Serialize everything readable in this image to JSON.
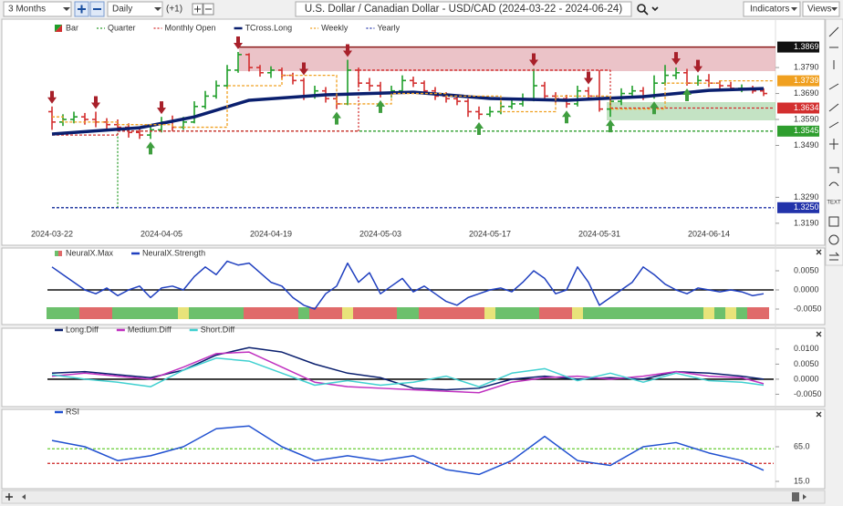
{
  "toolbar": {
    "range": "3 Months",
    "interval": "Daily",
    "offset": "(+1)",
    "title": "U.S. Dollar / Canadian Dollar - USD/CAD (2024-03-22 - 2024-06-24)",
    "indicators": "Indicators",
    "views": "Views",
    "text_tool": "TEXT"
  },
  "chart_data": [
    {
      "type": "ohlc",
      "categories": [
        "2024-03-22",
        null,
        null,
        null,
        null,
        null,
        null,
        null,
        null,
        null,
        "2024-04-05",
        null,
        null,
        null,
        null,
        null,
        null,
        null,
        null,
        null,
        "2024-04-19",
        null,
        null,
        null,
        null,
        null,
        null,
        null,
        null,
        null,
        "2024-05-03",
        null,
        null,
        null,
        null,
        null,
        null,
        null,
        null,
        null,
        "2024-05-17",
        null,
        null,
        null,
        null,
        null,
        null,
        null,
        null,
        null,
        "2024-05-31",
        null,
        null,
        null,
        null,
        null,
        null,
        null,
        null,
        null,
        "2024-06-14",
        null,
        null,
        null,
        null,
        null
      ],
      "ylim": [
        1.3172,
        1.3973
      ],
      "yticks": [
        {
          "value": 1.379,
          "label": "1.3790"
        },
        {
          "value": 1.369,
          "label": "1.3690"
        },
        {
          "value": 1.359,
          "label": "1.3590"
        },
        {
          "value": 1.349,
          "label": "1.3490"
        },
        {
          "value": 1.329,
          "label": "1.3290"
        },
        {
          "value": 1.319,
          "label": "1.3190"
        }
      ],
      "series": [
        {
          "name": "Bar",
          "type": "ohlc",
          "up_color": "#1f9e2a",
          "down_color": "#d32f2f",
          "open": [
            1.362,
            1.358,
            1.359,
            1.36,
            1.359,
            1.358,
            1.357,
            1.356,
            1.354,
            1.353,
            1.355,
            1.358,
            1.356,
            1.358,
            1.364,
            1.368,
            1.372,
            1.378,
            1.384,
            1.379,
            1.377,
            1.378,
            1.376,
            1.374,
            1.368,
            1.37,
            1.367,
            1.365,
            1.378,
            1.373,
            1.372,
            1.369,
            1.37,
            1.374,
            1.373,
            1.37,
            1.368,
            1.367,
            1.366,
            1.362,
            1.361,
            1.362,
            1.364,
            1.365,
            1.367,
            1.372,
            1.368,
            1.367,
            1.365,
            1.37,
            1.368,
            1.363,
            1.366,
            1.369,
            1.37,
            1.368,
            1.373,
            1.376,
            1.377,
            1.373,
            1.374,
            1.373,
            1.372,
            1.371,
            1.371,
            1.37
          ],
          "high": [
            1.364,
            1.361,
            1.362,
            1.3615,
            1.362,
            1.3595,
            1.359,
            1.3575,
            1.356,
            1.357,
            1.36,
            1.3605,
            1.36,
            1.366,
            1.37,
            1.374,
            1.38,
            1.385,
            1.3845,
            1.38,
            1.3795,
            1.379,
            1.377,
            1.375,
            1.372,
            1.3715,
            1.3685,
            1.382,
            1.379,
            1.375,
            1.3735,
            1.372,
            1.376,
            1.3755,
            1.374,
            1.3715,
            1.3695,
            1.3685,
            1.367,
            1.364,
            1.364,
            1.366,
            1.367,
            1.369,
            1.3785,
            1.3735,
            1.3695,
            1.3685,
            1.372,
            1.3715,
            1.378,
            1.3675,
            1.371,
            1.372,
            1.3715,
            1.376,
            1.38,
            1.379,
            1.3785,
            1.376,
            1.3765,
            1.374,
            1.3735,
            1.3725,
            1.372,
            1.371
          ],
          "low": [
            1.355,
            1.3565,
            1.3575,
            1.357,
            1.356,
            1.3555,
            1.3545,
            1.352,
            1.3515,
            1.3515,
            1.354,
            1.3545,
            1.355,
            1.3575,
            1.363,
            1.367,
            1.371,
            1.377,
            1.3775,
            1.3755,
            1.375,
            1.3745,
            1.3725,
            1.3665,
            1.367,
            1.3655,
            1.363,
            1.3645,
            1.3715,
            1.37,
            1.3675,
            1.3675,
            1.369,
            1.3715,
            1.369,
            1.3665,
            1.3655,
            1.3645,
            1.36,
            1.359,
            1.36,
            1.361,
            1.363,
            1.364,
            1.366,
            1.3665,
            1.3655,
            1.3635,
            1.364,
            1.3665,
            1.362,
            1.36,
            1.3645,
            1.3675,
            1.3665,
            1.367,
            1.372,
            1.3745,
            1.372,
            1.372,
            1.3715,
            1.3705,
            1.37,
            1.3695,
            1.369,
            1.368
          ],
          "close": [
            1.358,
            1.359,
            1.36,
            1.359,
            1.358,
            1.357,
            1.356,
            1.354,
            1.353,
            1.355,
            1.358,
            1.356,
            1.358,
            1.364,
            1.368,
            1.372,
            1.378,
            1.384,
            1.379,
            1.377,
            1.378,
            1.376,
            1.374,
            1.368,
            1.37,
            1.367,
            1.365,
            1.378,
            1.373,
            1.372,
            1.369,
            1.37,
            1.374,
            1.373,
            1.37,
            1.368,
            1.367,
            1.366,
            1.362,
            1.361,
            1.362,
            1.364,
            1.365,
            1.367,
            1.372,
            1.368,
            1.367,
            1.365,
            1.37,
            1.368,
            1.363,
            1.366,
            1.369,
            1.37,
            1.368,
            1.373,
            1.376,
            1.377,
            1.373,
            1.374,
            1.373,
            1.372,
            1.371,
            1.371,
            1.37,
            1.369
          ]
        },
        {
          "name": "Quarter",
          "type": "level",
          "color": "#2e9e2e",
          "x": [
            0,
            6
          ],
          "values": [
            1.325,
            1.3545
          ],
          "label": "1.3545"
        },
        {
          "name": "Monthly Open",
          "type": "level",
          "color": "#d32f2f",
          "x": [
            0,
            6,
            28,
            51
          ],
          "values": [
            1.353,
            1.3545,
            1.378,
            1.3634
          ],
          "label": "1.3634"
        },
        {
          "name": "TCross.Long",
          "type": "line",
          "color": "#0a1f6e",
          "x": [
            0,
            8,
            13,
            18,
            25,
            33,
            40,
            47,
            54,
            60,
            65
          ],
          "values": [
            1.3534,
            1.3558,
            1.36,
            1.3664,
            1.3685,
            1.3695,
            1.3671,
            1.3664,
            1.3678,
            1.3702,
            1.3709
          ]
        },
        {
          "name": "Weekly",
          "type": "step",
          "color": "#f0a020",
          "x": [
            0,
            1,
            6,
            11,
            16,
            21,
            26,
            31,
            36,
            41,
            46,
            51,
            56,
            61
          ],
          "values": [
            1.36,
            1.358,
            1.357,
            1.356,
            1.372,
            1.376,
            1.365,
            1.369,
            1.368,
            1.362,
            1.368,
            1.363,
            1.373,
            1.3739
          ],
          "label": "1.3739"
        },
        {
          "name": "Yearly",
          "type": "level",
          "color": "#2233aa",
          "x": [
            0
          ],
          "values": [
            1.325
          ],
          "label": "1.3250"
        }
      ],
      "levels": [
        {
          "value": 1.3869,
          "x": 17,
          "color": "#8b1a1a"
        }
      ],
      "down_arrows": [
        0,
        4,
        10,
        17,
        23,
        27,
        44,
        49,
        57,
        59
      ],
      "up_arrows": [
        9,
        26,
        30,
        39,
        47,
        51,
        55,
        58
      ]
    },
    {
      "type": "line",
      "ylim": [
        -0.0081,
        0.0081
      ],
      "yticks": [
        {
          "value": 0.005,
          "label": "0.0050"
        },
        {
          "value": 0,
          "label": "0.0000"
        },
        {
          "value": -0.005,
          "label": "-0.0050"
        }
      ],
      "hline": 0,
      "series": [
        {
          "name": "NeuralX.Max",
          "type": "strip",
          "palette": {
            "-1": "#e06a6a",
            "0": "#e8e37a",
            "1": "#6cc06c"
          },
          "values": [
            1,
            1,
            1,
            -1,
            -1,
            -1,
            1,
            1,
            1,
            1,
            1,
            1,
            0,
            1,
            1,
            1,
            1,
            1,
            -1,
            -1,
            -1,
            -1,
            -1,
            1,
            -1,
            -1,
            -1,
            0,
            -1,
            -1,
            -1,
            -1,
            1,
            1,
            -1,
            -1,
            -1,
            -1,
            -1,
            -1,
            0,
            1,
            1,
            1,
            1,
            -1,
            -1,
            -1,
            0,
            1,
            1,
            1,
            1,
            1,
            1,
            1,
            1,
            1,
            1,
            1,
            0,
            1,
            0,
            1,
            -1,
            -1
          ]
        },
        {
          "name": "NeuralX.Strength",
          "type": "line",
          "color": "#1f3fbf",
          "values": [
            0.006,
            0.004,
            0.002,
            0.0,
            -0.001,
            0.0005,
            -0.0015,
            0.0,
            0.001,
            -0.002,
            0.0005,
            0.001,
            0.0,
            0.0035,
            0.006,
            0.004,
            0.0075,
            0.0065,
            0.007,
            0.0045,
            0.002,
            0.001,
            -0.002,
            -0.004,
            -0.005,
            -0.001,
            0.001,
            0.007,
            0.002,
            0.0045,
            -0.001,
            0.001,
            0.003,
            -0.0005,
            0.001,
            -0.001,
            -0.003,
            -0.004,
            -0.002,
            -0.001,
            0.0,
            0.0005,
            -0.0005,
            0.002,
            0.005,
            0.003,
            -0.001,
            0.0,
            0.006,
            0.002,
            -0.004,
            -0.002,
            0.0,
            0.002,
            0.006,
            0.004,
            0.0015,
            0.0,
            -0.001,
            0.0005,
            0.0,
            -0.0005,
            0.0,
            -0.0005,
            -0.0015,
            -0.001
          ]
        }
      ]
    },
    {
      "type": "line",
      "ylim": [
        -0.0079,
        0.0145
      ],
      "yticks": [
        {
          "value": 0.01,
          "label": "0.0100"
        },
        {
          "value": 0.005,
          "label": "0.0050"
        },
        {
          "value": 0,
          "label": "0.0000"
        },
        {
          "value": -0.005,
          "label": "-0.0050"
        }
      ],
      "hline": 0,
      "x": [
        0,
        3,
        6,
        9,
        12,
        15,
        18,
        21,
        24,
        27,
        30,
        33,
        36,
        39,
        42,
        45,
        48,
        51,
        54,
        57,
        60,
        63,
        65
      ],
      "series": [
        {
          "name": "Long.Diff",
          "type": "line",
          "color": "#0a1f6e",
          "values": [
            0.002,
            0.0025,
            0.0015,
            0.0005,
            0.003,
            0.008,
            0.0105,
            0.009,
            0.005,
            0.002,
            0.0005,
            -0.003,
            -0.0035,
            -0.003,
            0.0,
            0.001,
            0.0,
            0.0005,
            0.0,
            0.0025,
            0.002,
            0.001,
            0.0
          ]
        },
        {
          "name": "Medium.Diff",
          "type": "line",
          "color": "#c030c0",
          "values": [
            0.001,
            0.002,
            0.001,
            0.0,
            0.004,
            0.0085,
            0.009,
            0.004,
            -0.001,
            -0.0025,
            -0.003,
            -0.0035,
            -0.004,
            -0.0045,
            -0.001,
            0.0005,
            0.001,
            0.0,
            0.001,
            0.0025,
            0.001,
            0.0005,
            -0.0015
          ]
        },
        {
          "name": "Short.Diff",
          "type": "line",
          "color": "#40d0d0",
          "values": [
            0.0015,
            0.0,
            -0.001,
            -0.0025,
            0.003,
            0.007,
            0.006,
            0.002,
            -0.002,
            -0.0005,
            -0.002,
            -0.001,
            0.001,
            -0.0025,
            0.002,
            0.0035,
            -0.0005,
            0.002,
            -0.001,
            0.002,
            -0.0005,
            -0.001,
            -0.002
          ]
        }
      ]
    },
    {
      "type": "line",
      "ylim": [
        5.8,
        107.1
      ],
      "yticks": [
        {
          "value": 65,
          "label": "65.0"
        },
        {
          "value": 15,
          "label": "15.0"
        }
      ],
      "levels": [
        {
          "value": 62,
          "color": "#66cc33"
        },
        {
          "value": 41,
          "color": "#cc2222"
        }
      ],
      "x": [
        0,
        3,
        6,
        9,
        12,
        15,
        18,
        21,
        24,
        27,
        30,
        33,
        36,
        39,
        42,
        45,
        48,
        51,
        54,
        57,
        60,
        63,
        65
      ],
      "series": [
        {
          "name": "RSI",
          "type": "line",
          "color": "#2050d0",
          "values": [
            74,
            65,
            45,
            52,
            65,
            91,
            95,
            65,
            45,
            52,
            45,
            52,
            32,
            25,
            45,
            80,
            45,
            38,
            65,
            71,
            56,
            45,
            31
          ]
        }
      ]
    }
  ]
}
